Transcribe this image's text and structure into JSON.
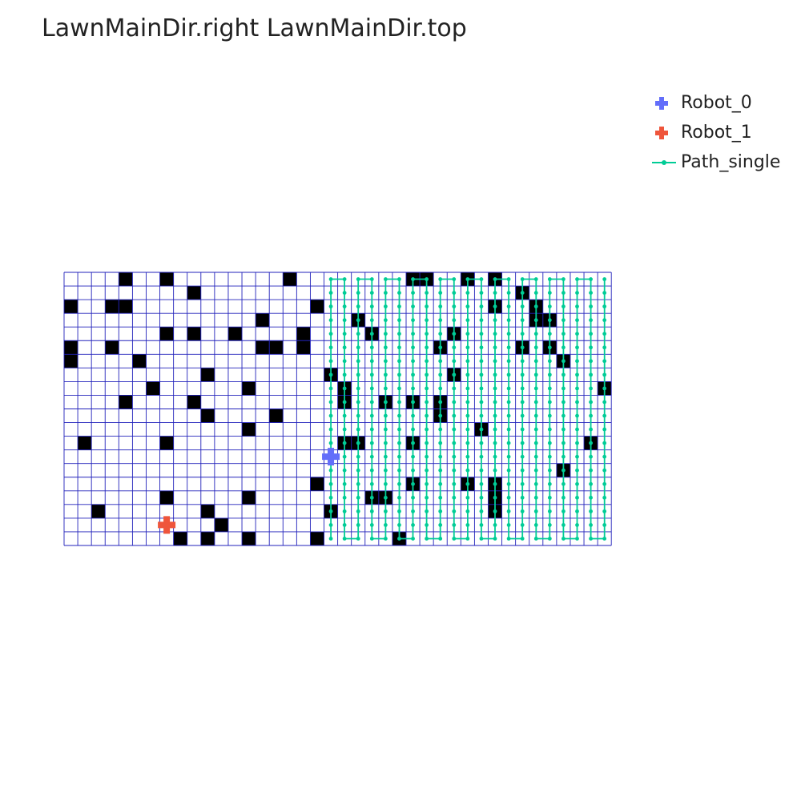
{
  "chart_data": {
    "type": "grid-map",
    "title": "LawnMainDir.right LawnMainDir.top",
    "grid": {
      "columns": 40,
      "rows": 20,
      "x_range": [
        0,
        40
      ],
      "y_range": [
        0,
        20
      ]
    },
    "colors": {
      "grid_line": "#2222bb",
      "obstacle": "#000000",
      "robot_0": "#636efa",
      "robot_1": "#ef553b",
      "path": "#00cc96"
    },
    "legend": {
      "placement": "top-right",
      "entries": [
        {
          "name": "Robot_0",
          "marker": "cross",
          "color": "#636efa"
        },
        {
          "name": "Robot_1",
          "marker": "cross",
          "color": "#ef553b"
        },
        {
          "name": "Path_single",
          "marker": "line-dot",
          "color": "#00cc96"
        }
      ]
    },
    "robots": [
      {
        "name": "Robot_0",
        "col": 19,
        "row": 13
      },
      {
        "name": "Robot_1",
        "col": 7,
        "row": 18
      }
    ],
    "obstacles": [
      [
        4,
        0
      ],
      [
        7,
        0
      ],
      [
        16,
        0
      ],
      [
        25,
        0
      ],
      [
        26,
        0
      ],
      [
        29,
        0
      ],
      [
        31,
        0
      ],
      [
        9,
        1
      ],
      [
        33,
        1
      ],
      [
        0,
        2
      ],
      [
        3,
        2
      ],
      [
        4,
        2
      ],
      [
        18,
        2
      ],
      [
        31,
        2
      ],
      [
        34,
        2
      ],
      [
        14,
        3
      ],
      [
        21,
        3
      ],
      [
        34,
        3
      ],
      [
        35,
        3
      ],
      [
        7,
        4
      ],
      [
        9,
        4
      ],
      [
        12,
        4
      ],
      [
        17,
        4
      ],
      [
        22,
        4
      ],
      [
        28,
        4
      ],
      [
        0,
        5
      ],
      [
        3,
        5
      ],
      [
        14,
        5
      ],
      [
        15,
        5
      ],
      [
        17,
        5
      ],
      [
        27,
        5
      ],
      [
        33,
        5
      ],
      [
        35,
        5
      ],
      [
        0,
        6
      ],
      [
        5,
        6
      ],
      [
        36,
        6
      ],
      [
        10,
        7
      ],
      [
        19,
        7
      ],
      [
        28,
        7
      ],
      [
        6,
        8
      ],
      [
        13,
        8
      ],
      [
        20,
        8
      ],
      [
        39,
        8
      ],
      [
        4,
        9
      ],
      [
        9,
        9
      ],
      [
        20,
        9
      ],
      [
        23,
        9
      ],
      [
        25,
        9
      ],
      [
        27,
        9
      ],
      [
        10,
        10
      ],
      [
        15,
        10
      ],
      [
        27,
        10
      ],
      [
        13,
        11
      ],
      [
        30,
        11
      ],
      [
        1,
        12
      ],
      [
        7,
        12
      ],
      [
        20,
        12
      ],
      [
        21,
        12
      ],
      [
        25,
        12
      ],
      [
        38,
        12
      ],
      [
        36,
        14
      ],
      [
        18,
        15
      ],
      [
        25,
        15
      ],
      [
        29,
        15
      ],
      [
        31,
        15
      ],
      [
        7,
        16
      ],
      [
        13,
        16
      ],
      [
        22,
        16
      ],
      [
        23,
        16
      ],
      [
        31,
        16
      ],
      [
        2,
        17
      ],
      [
        10,
        17
      ],
      [
        19,
        17
      ],
      [
        31,
        17
      ],
      [
        11,
        18
      ],
      [
        8,
        19
      ],
      [
        10,
        19
      ],
      [
        13,
        19
      ],
      [
        18,
        19
      ],
      [
        24,
        19
      ]
    ],
    "path_single": {
      "columns": [
        19,
        20,
        21,
        22,
        23,
        24,
        25,
        26,
        27,
        28,
        29,
        30,
        31,
        32,
        33,
        34,
        35,
        36,
        37,
        38,
        39
      ],
      "row_range": [
        0,
        19
      ]
    }
  }
}
